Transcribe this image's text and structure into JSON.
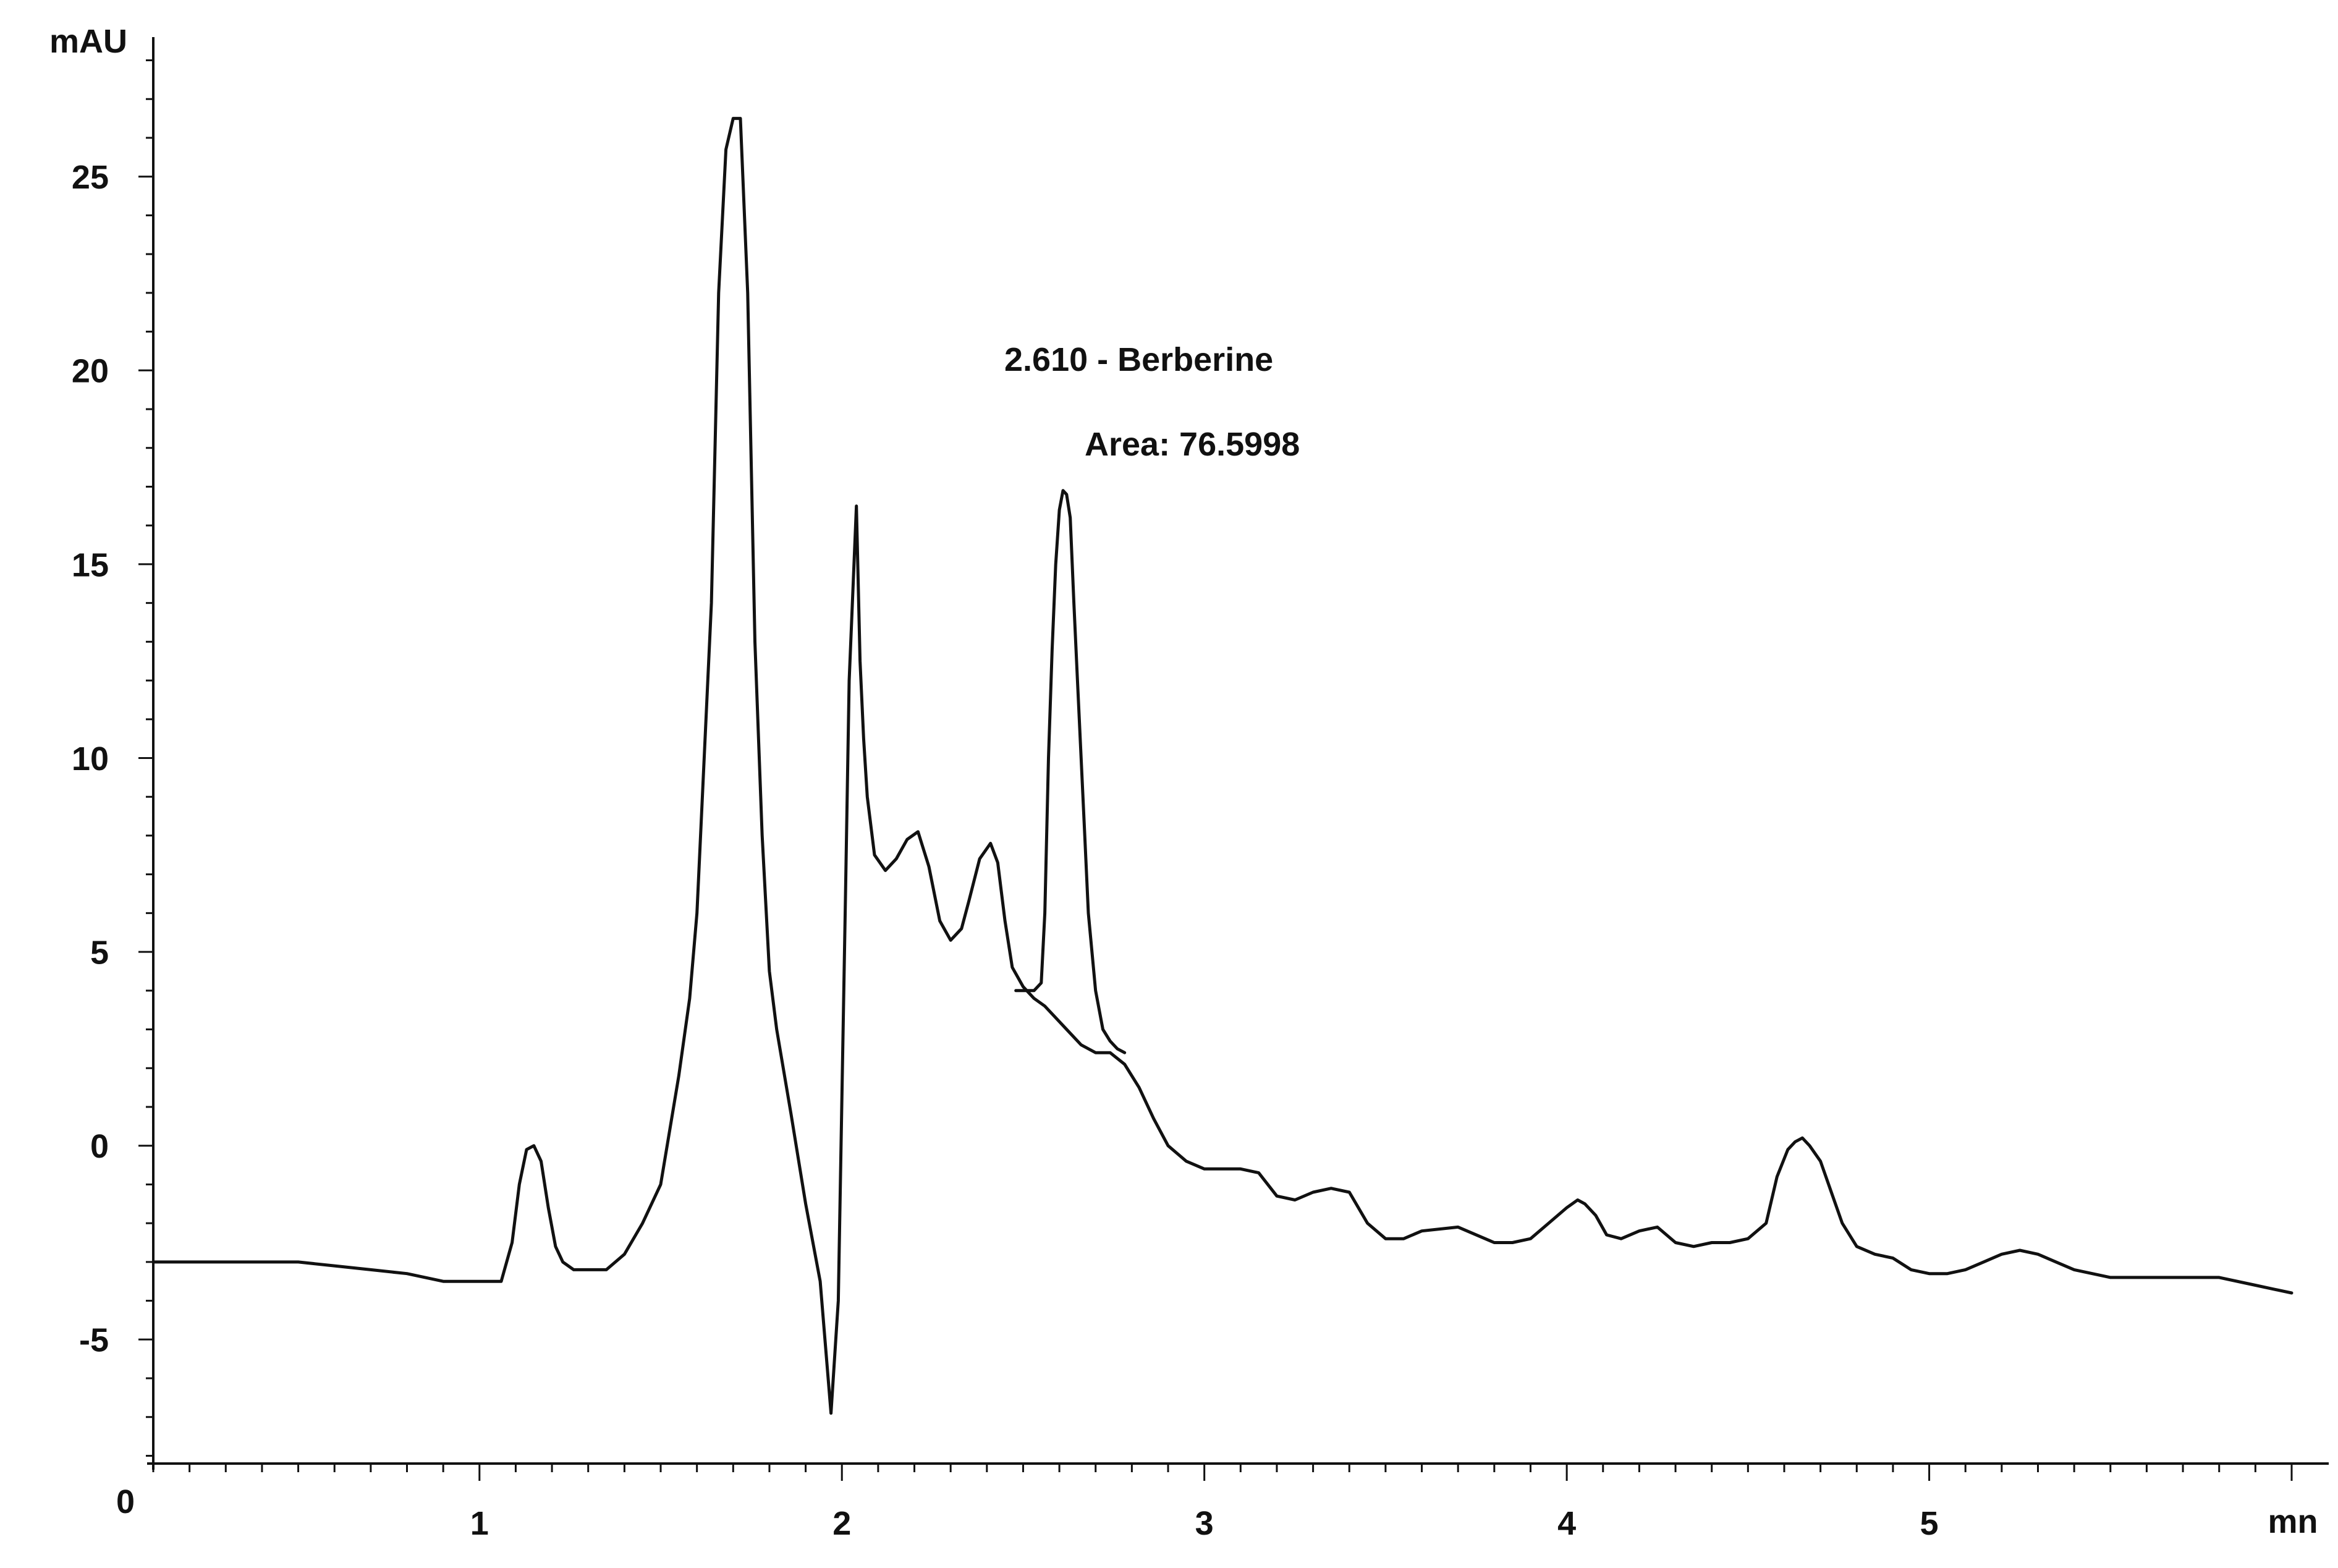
{
  "chart_data": {
    "type": "line",
    "title": "",
    "xlabel": "mn",
    "ylabel": "mAU",
    "xlim": [
      0.1,
      6.0
    ],
    "ylim": [
      -8.2,
      28.2
    ],
    "x_ticks": [
      1,
      2,
      3,
      4,
      5
    ],
    "x_tick_labels": [
      "1",
      "2",
      "3",
      "4",
      "5"
    ],
    "x_origin_label": "0",
    "y_ticks": [
      -5,
      0,
      5,
      10,
      15,
      20,
      25
    ],
    "y_tick_labels": [
      "-5",
      "0",
      "5",
      "10",
      "15",
      "20",
      "25"
    ],
    "grid": false,
    "line_color": "#111111",
    "annotations": [
      {
        "label": "2.610 - Berberine",
        "x": 2.61
      },
      {
        "label": "Area: 76.5998",
        "x": 2.61
      }
    ],
    "series": [
      {
        "x": [
          0.1,
          0.3,
          0.5,
          0.6,
          0.7,
          0.8,
          0.9,
          1.0,
          1.06,
          1.09,
          1.11,
          1.13,
          1.15,
          1.17,
          1.19,
          1.21,
          1.23,
          1.26,
          1.3,
          1.35,
          1.4,
          1.45,
          1.5,
          1.55,
          1.58,
          1.6,
          1.62,
          1.64,
          1.66,
          1.68,
          1.7,
          1.72,
          1.74,
          1.76,
          1.78,
          1.8,
          1.82,
          1.86,
          1.9,
          1.94,
          1.97,
          1.99,
          2.01,
          2.02,
          2.04,
          2.05,
          2.06,
          2.07,
          2.09,
          2.12,
          2.15,
          2.18,
          2.21,
          2.24,
          2.27,
          2.3,
          2.33,
          2.35,
          2.38,
          2.41,
          2.43,
          2.45,
          2.47,
          2.5,
          2.53,
          2.56,
          2.59,
          2.62,
          2.66,
          2.7,
          2.74,
          2.78,
          2.82,
          2.86,
          2.9,
          2.95,
          3.0,
          3.1,
          3.15,
          3.2,
          3.25,
          3.3,
          3.35,
          3.4,
          3.45,
          3.5,
          3.55,
          3.6,
          3.7,
          3.8,
          3.85,
          3.9,
          3.95,
          4.0,
          4.03,
          4.05,
          4.08,
          4.11,
          4.15,
          4.2,
          4.25,
          4.3,
          4.35,
          4.4,
          4.45,
          4.5,
          4.55,
          4.58,
          4.61,
          4.63,
          4.65,
          4.67,
          4.7,
          4.73,
          4.76,
          4.8,
          4.85,
          4.9,
          4.95,
          5.0,
          5.05,
          5.1,
          5.15,
          5.2,
          5.25,
          5.3,
          5.35,
          5.4,
          5.45,
          5.5,
          5.6,
          5.7,
          5.8,
          5.9,
          5.95,
          6.0
        ],
        "y": [
          -3.0,
          -3.0,
          -3.0,
          -3.1,
          -3.2,
          -3.3,
          -3.5,
          -3.5,
          -3.5,
          -2.5,
          -1.0,
          -0.1,
          0.0,
          -0.4,
          -1.6,
          -2.6,
          -3.0,
          -3.2,
          -3.2,
          -3.2,
          -2.8,
          -2.0,
          -1.0,
          1.8,
          3.8,
          6.0,
          10.0,
          14.0,
          22.0,
          25.7,
          26.5,
          26.5,
          22.0,
          13.0,
          8.0,
          4.5,
          3.0,
          0.8,
          -1.5,
          -3.5,
          -6.9,
          -4.0,
          6.5,
          12.0,
          16.5,
          12.5,
          10.5,
          9.0,
          7.5,
          7.1,
          7.4,
          7.9,
          8.1,
          7.2,
          5.8,
          5.3,
          5.6,
          6.3,
          7.4,
          7.8,
          7.3,
          5.8,
          4.6,
          4.1,
          3.8,
          3.6,
          3.3,
          3.0,
          2.6,
          2.4,
          2.4,
          2.1,
          1.5,
          0.7,
          0.0,
          -0.4,
          -0.6,
          -0.6,
          -0.7,
          -1.3,
          -1.4,
          -1.2,
          -1.1,
          -1.2,
          -2.0,
          -2.4,
          -2.4,
          -2.2,
          -2.1,
          -2.5,
          -2.5,
          -2.4,
          -2.0,
          -1.6,
          -1.4,
          -1.5,
          -1.8,
          -2.3,
          -2.4,
          -2.2,
          -2.1,
          -2.5,
          -2.6,
          -2.5,
          -2.5,
          -2.4,
          -2.0,
          -0.8,
          -0.1,
          0.1,
          0.2,
          0.0,
          -0.4,
          -1.2,
          -2.0,
          -2.6,
          -2.8,
          -2.9,
          -3.2,
          -3.3,
          -3.3,
          -3.2,
          -3.0,
          -2.8,
          -2.7,
          -2.8,
          -3.0,
          -3.2,
          -3.3,
          -3.4,
          -3.4,
          -3.4,
          -3.4,
          -3.6,
          -3.7,
          -3.8
        ]
      },
      {
        "x": [
          2.48,
          2.53,
          2.55,
          2.56,
          2.57,
          2.58,
          2.59,
          2.6,
          2.61,
          2.62,
          2.63,
          2.64,
          2.65,
          2.66,
          2.67,
          2.68,
          2.7,
          2.72,
          2.74,
          2.76,
          2.78
        ],
        "y": [
          4.0,
          4.0,
          4.2,
          6.0,
          10.0,
          12.8,
          15.0,
          16.4,
          16.9,
          16.8,
          16.2,
          14.0,
          12.0,
          10.0,
          8.0,
          6.0,
          4.0,
          3.0,
          2.7,
          2.5,
          2.4
        ]
      }
    ]
  }
}
